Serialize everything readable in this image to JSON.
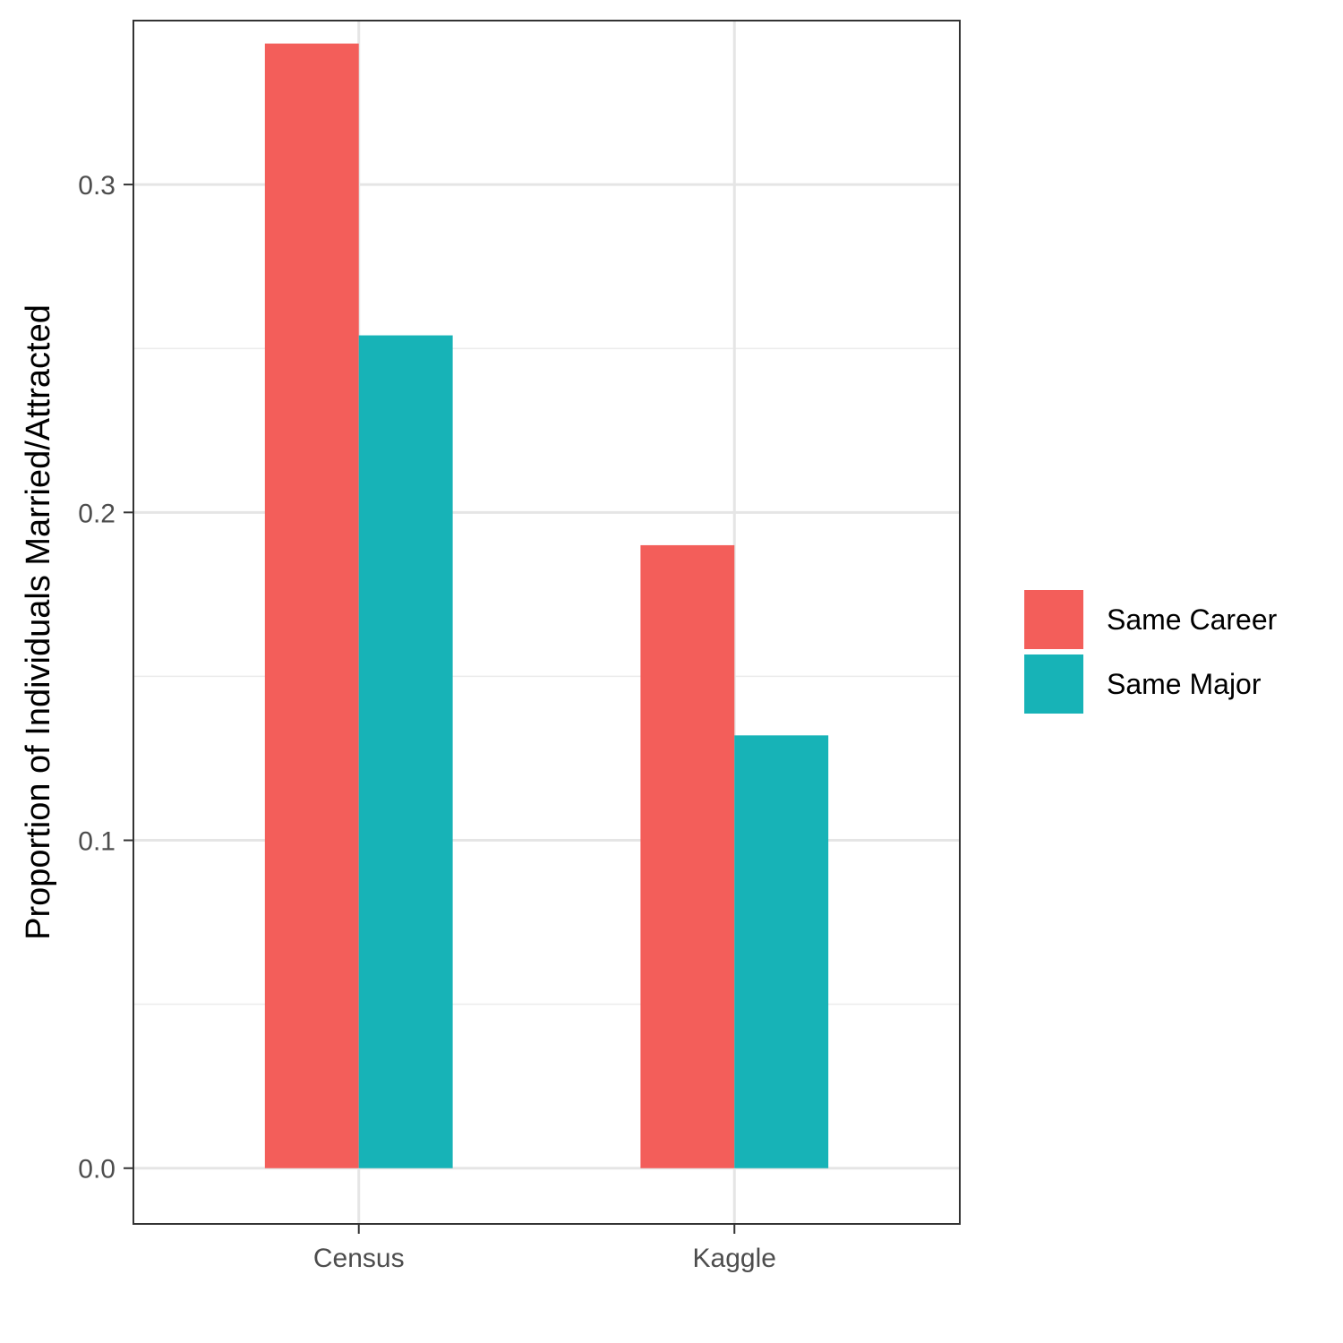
{
  "chart_data": {
    "type": "bar",
    "title": "",
    "xlabel": "",
    "ylabel": "Proportion of Individuals Married/Attracted",
    "categories": [
      "Census",
      "Kaggle"
    ],
    "series": [
      {
        "name": "Same Career",
        "values": [
          0.343,
          0.19
        ],
        "color": "#F35E5A"
      },
      {
        "name": "Same Major",
        "values": [
          0.254,
          0.132
        ],
        "color": "#17B3B7"
      }
    ],
    "ylim": [
      -0.017,
      0.35
    ],
    "yticks": [
      0.0,
      0.1,
      0.2,
      0.3
    ],
    "ytick_labels": [
      "0.0",
      "0.1",
      "0.2",
      "0.3"
    ],
    "grid": true,
    "legend_position": "right"
  }
}
